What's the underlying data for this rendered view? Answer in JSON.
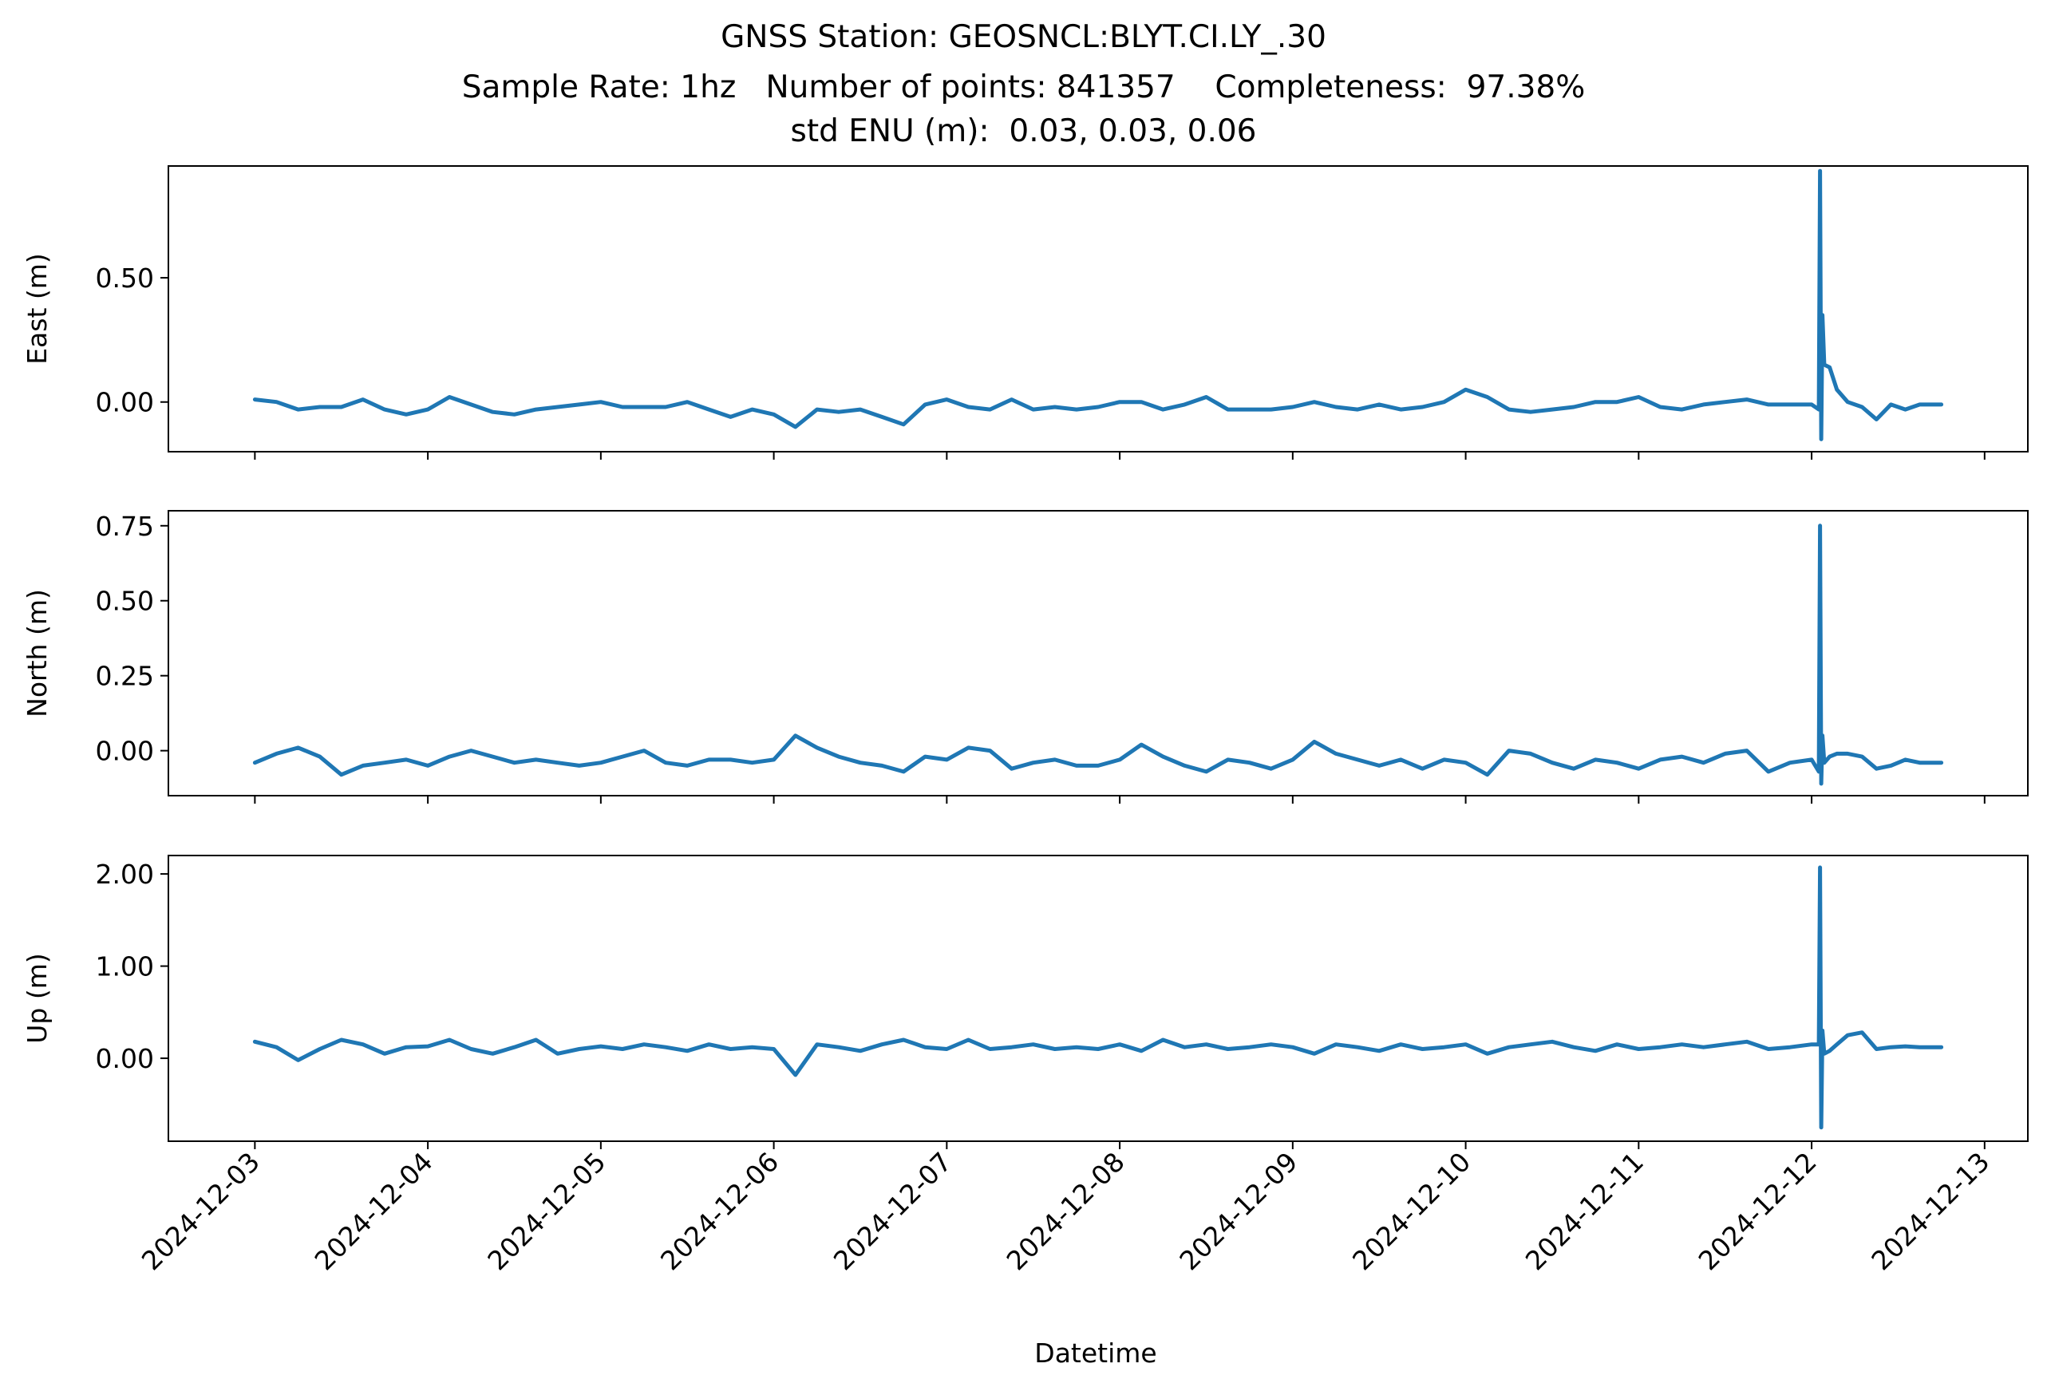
{
  "figure": {
    "title_line1": "GNSS Station: GEOSNCL:BLYT.CI.LY_.30",
    "title_line2": "Sample Rate: 1hz   Number of points: 841357    Completeness:  97.38%",
    "title_line3": "std ENU (m):  0.03, 0.03, 0.06",
    "xlabel": "Datetime"
  },
  "chart_data": [
    {
      "type": "line",
      "ylabel": "East (m)",
      "ylim": [
        -0.2,
        0.95
      ],
      "yticks": [
        0.0,
        0.5
      ],
      "ytick_labels": [
        "0.00",
        "0.50"
      ],
      "xlim": [
        "2024-12-02T12:00",
        "2024-12-13T06:00"
      ],
      "color": "#1f77b4",
      "x": [
        "2024-12-03T00:00",
        "2024-12-03T03:00",
        "2024-12-03T06:00",
        "2024-12-03T09:00",
        "2024-12-03T12:00",
        "2024-12-03T15:00",
        "2024-12-03T18:00",
        "2024-12-03T21:00",
        "2024-12-04T00:00",
        "2024-12-04T03:00",
        "2024-12-04T06:00",
        "2024-12-04T09:00",
        "2024-12-04T12:00",
        "2024-12-04T15:00",
        "2024-12-04T18:00",
        "2024-12-04T21:00",
        "2024-12-05T00:00",
        "2024-12-05T03:00",
        "2024-12-05T06:00",
        "2024-12-05T09:00",
        "2024-12-05T12:00",
        "2024-12-05T15:00",
        "2024-12-05T18:00",
        "2024-12-05T21:00",
        "2024-12-06T00:00",
        "2024-12-06T03:00",
        "2024-12-06T06:00",
        "2024-12-06T09:00",
        "2024-12-06T12:00",
        "2024-12-06T15:00",
        "2024-12-06T18:00",
        "2024-12-06T21:00",
        "2024-12-07T00:00",
        "2024-12-07T03:00",
        "2024-12-07T06:00",
        "2024-12-07T09:00",
        "2024-12-07T12:00",
        "2024-12-07T15:00",
        "2024-12-07T18:00",
        "2024-12-07T21:00",
        "2024-12-08T00:00",
        "2024-12-08T03:00",
        "2024-12-08T06:00",
        "2024-12-08T09:00",
        "2024-12-08T12:00",
        "2024-12-08T15:00",
        "2024-12-08T18:00",
        "2024-12-08T21:00",
        "2024-12-09T00:00",
        "2024-12-09T03:00",
        "2024-12-09T06:00",
        "2024-12-09T09:00",
        "2024-12-09T12:00",
        "2024-12-09T15:00",
        "2024-12-09T18:00",
        "2024-12-09T21:00",
        "2024-12-10T00:00",
        "2024-12-10T03:00",
        "2024-12-10T06:00",
        "2024-12-10T09:00",
        "2024-12-10T12:00",
        "2024-12-10T15:00",
        "2024-12-10T18:00",
        "2024-12-10T21:00",
        "2024-12-11T00:00",
        "2024-12-11T03:00",
        "2024-12-11T06:00",
        "2024-12-11T09:00",
        "2024-12-11T12:00",
        "2024-12-11T15:00",
        "2024-12-11T18:00",
        "2024-12-11T21:00",
        "2024-12-12T00:00",
        "2024-12-12T01:00",
        "2024-12-12T01:10",
        "2024-12-12T01:20",
        "2024-12-12T01:30",
        "2024-12-12T01:45",
        "2024-12-12T02:30",
        "2024-12-12T03:30",
        "2024-12-12T05:00",
        "2024-12-12T07:00",
        "2024-12-12T09:00",
        "2024-12-12T11:00",
        "2024-12-12T13:00",
        "2024-12-12T15:00",
        "2024-12-12T18:00"
      ],
      "y": [
        0.01,
        0.0,
        -0.03,
        -0.02,
        -0.02,
        0.01,
        -0.03,
        -0.05,
        -0.03,
        0.02,
        -0.01,
        -0.04,
        -0.05,
        -0.03,
        -0.02,
        -0.01,
        0.0,
        -0.02,
        -0.02,
        -0.02,
        0.0,
        -0.03,
        -0.06,
        -0.03,
        -0.05,
        -0.1,
        -0.03,
        -0.04,
        -0.03,
        -0.06,
        -0.09,
        -0.01,
        0.01,
        -0.02,
        -0.03,
        0.01,
        -0.03,
        -0.02,
        -0.03,
        -0.02,
        0.0,
        0.0,
        -0.03,
        -0.01,
        0.02,
        -0.03,
        -0.03,
        -0.03,
        -0.02,
        0.0,
        -0.02,
        -0.03,
        -0.01,
        -0.03,
        -0.02,
        0.0,
        0.05,
        0.02,
        -0.03,
        -0.04,
        -0.03,
        -0.02,
        0.0,
        0.0,
        0.02,
        -0.02,
        -0.03,
        -0.01,
        0.0,
        0.01,
        -0.01,
        -0.01,
        -0.01,
        -0.03,
        0.93,
        -0.15,
        0.35,
        0.15,
        0.14,
        0.05,
        0.0,
        -0.02,
        -0.07,
        -0.01,
        -0.03,
        -0.01,
        -0.01
      ]
    },
    {
      "type": "line",
      "ylabel": "North (m)",
      "ylim": [
        -0.15,
        0.8
      ],
      "yticks": [
        0.0,
        0.25,
        0.5,
        0.75
      ],
      "ytick_labels": [
        "0.00",
        "0.25",
        "0.50",
        "0.75"
      ],
      "xlim": [
        "2024-12-02T12:00",
        "2024-12-13T06:00"
      ],
      "color": "#1f77b4",
      "x": [
        "2024-12-03T00:00",
        "2024-12-03T03:00",
        "2024-12-03T06:00",
        "2024-12-03T09:00",
        "2024-12-03T12:00",
        "2024-12-03T15:00",
        "2024-12-03T18:00",
        "2024-12-03T21:00",
        "2024-12-04T00:00",
        "2024-12-04T03:00",
        "2024-12-04T06:00",
        "2024-12-04T09:00",
        "2024-12-04T12:00",
        "2024-12-04T15:00",
        "2024-12-04T18:00",
        "2024-12-04T21:00",
        "2024-12-05T00:00",
        "2024-12-05T03:00",
        "2024-12-05T06:00",
        "2024-12-05T09:00",
        "2024-12-05T12:00",
        "2024-12-05T15:00",
        "2024-12-05T18:00",
        "2024-12-05T21:00",
        "2024-12-06T00:00",
        "2024-12-06T03:00",
        "2024-12-06T06:00",
        "2024-12-06T09:00",
        "2024-12-06T12:00",
        "2024-12-06T15:00",
        "2024-12-06T18:00",
        "2024-12-06T21:00",
        "2024-12-07T00:00",
        "2024-12-07T03:00",
        "2024-12-07T06:00",
        "2024-12-07T09:00",
        "2024-12-07T12:00",
        "2024-12-07T15:00",
        "2024-12-07T18:00",
        "2024-12-07T21:00",
        "2024-12-08T00:00",
        "2024-12-08T03:00",
        "2024-12-08T06:00",
        "2024-12-08T09:00",
        "2024-12-08T12:00",
        "2024-12-08T15:00",
        "2024-12-08T18:00",
        "2024-12-08T21:00",
        "2024-12-09T00:00",
        "2024-12-09T03:00",
        "2024-12-09T06:00",
        "2024-12-09T09:00",
        "2024-12-09T12:00",
        "2024-12-09T15:00",
        "2024-12-09T18:00",
        "2024-12-09T21:00",
        "2024-12-10T00:00",
        "2024-12-10T03:00",
        "2024-12-10T06:00",
        "2024-12-10T09:00",
        "2024-12-10T12:00",
        "2024-12-10T15:00",
        "2024-12-10T18:00",
        "2024-12-10T21:00",
        "2024-12-11T00:00",
        "2024-12-11T03:00",
        "2024-12-11T06:00",
        "2024-12-11T09:00",
        "2024-12-11T12:00",
        "2024-12-11T15:00",
        "2024-12-11T18:00",
        "2024-12-11T21:00",
        "2024-12-12T00:00",
        "2024-12-12T01:00",
        "2024-12-12T01:10",
        "2024-12-12T01:20",
        "2024-12-12T01:30",
        "2024-12-12T01:45",
        "2024-12-12T02:30",
        "2024-12-12T03:30",
        "2024-12-12T05:00",
        "2024-12-12T07:00",
        "2024-12-12T09:00",
        "2024-12-12T11:00",
        "2024-12-12T13:00",
        "2024-12-12T15:00",
        "2024-12-12T18:00"
      ],
      "y": [
        -0.04,
        -0.01,
        0.01,
        -0.02,
        -0.08,
        -0.05,
        -0.04,
        -0.03,
        -0.05,
        -0.02,
        0.0,
        -0.02,
        -0.04,
        -0.03,
        -0.04,
        -0.05,
        -0.04,
        -0.02,
        0.0,
        -0.04,
        -0.05,
        -0.03,
        -0.03,
        -0.04,
        -0.03,
        0.05,
        0.01,
        -0.02,
        -0.04,
        -0.05,
        -0.07,
        -0.02,
        -0.03,
        0.01,
        0.0,
        -0.06,
        -0.04,
        -0.03,
        -0.05,
        -0.05,
        -0.03,
        0.02,
        -0.02,
        -0.05,
        -0.07,
        -0.03,
        -0.04,
        -0.06,
        -0.03,
        0.03,
        -0.01,
        -0.03,
        -0.05,
        -0.03,
        -0.06,
        -0.03,
        -0.04,
        -0.08,
        0.0,
        -0.01,
        -0.04,
        -0.06,
        -0.03,
        -0.04,
        -0.06,
        -0.03,
        -0.02,
        -0.04,
        -0.01,
        0.0,
        -0.07,
        -0.04,
        -0.03,
        -0.07,
        0.75,
        -0.11,
        0.05,
        -0.04,
        -0.02,
        -0.01,
        -0.01,
        -0.02,
        -0.06,
        -0.05,
        -0.03,
        -0.04,
        -0.04
      ]
    },
    {
      "type": "line",
      "ylabel": "Up (m)",
      "ylim": [
        -0.9,
        2.2
      ],
      "yticks": [
        0.0,
        1.0,
        2.0
      ],
      "ytick_labels": [
        "0.00",
        "1.00",
        "2.00"
      ],
      "xlim": [
        "2024-12-02T12:00",
        "2024-12-13T06:00"
      ],
      "color": "#1f77b4",
      "x": [
        "2024-12-03T00:00",
        "2024-12-03T03:00",
        "2024-12-03T06:00",
        "2024-12-03T09:00",
        "2024-12-03T12:00",
        "2024-12-03T15:00",
        "2024-12-03T18:00",
        "2024-12-03T21:00",
        "2024-12-04T00:00",
        "2024-12-04T03:00",
        "2024-12-04T06:00",
        "2024-12-04T09:00",
        "2024-12-04T12:00",
        "2024-12-04T15:00",
        "2024-12-04T18:00",
        "2024-12-04T21:00",
        "2024-12-05T00:00",
        "2024-12-05T03:00",
        "2024-12-05T06:00",
        "2024-12-05T09:00",
        "2024-12-05T12:00",
        "2024-12-05T15:00",
        "2024-12-05T18:00",
        "2024-12-05T21:00",
        "2024-12-06T00:00",
        "2024-12-06T03:00",
        "2024-12-06T06:00",
        "2024-12-06T09:00",
        "2024-12-06T12:00",
        "2024-12-06T15:00",
        "2024-12-06T18:00",
        "2024-12-06T21:00",
        "2024-12-07T00:00",
        "2024-12-07T03:00",
        "2024-12-07T06:00",
        "2024-12-07T09:00",
        "2024-12-07T12:00",
        "2024-12-07T15:00",
        "2024-12-07T18:00",
        "2024-12-07T21:00",
        "2024-12-08T00:00",
        "2024-12-08T03:00",
        "2024-12-08T06:00",
        "2024-12-08T09:00",
        "2024-12-08T12:00",
        "2024-12-08T15:00",
        "2024-12-08T18:00",
        "2024-12-08T21:00",
        "2024-12-09T00:00",
        "2024-12-09T03:00",
        "2024-12-09T06:00",
        "2024-12-09T09:00",
        "2024-12-09T12:00",
        "2024-12-09T15:00",
        "2024-12-09T18:00",
        "2024-12-09T21:00",
        "2024-12-10T00:00",
        "2024-12-10T03:00",
        "2024-12-10T06:00",
        "2024-12-10T09:00",
        "2024-12-10T12:00",
        "2024-12-10T15:00",
        "2024-12-10T18:00",
        "2024-12-10T21:00",
        "2024-12-11T00:00",
        "2024-12-11T03:00",
        "2024-12-11T06:00",
        "2024-12-11T09:00",
        "2024-12-11T12:00",
        "2024-12-11T15:00",
        "2024-12-11T18:00",
        "2024-12-11T21:00",
        "2024-12-12T00:00",
        "2024-12-12T01:00",
        "2024-12-12T01:10",
        "2024-12-12T01:20",
        "2024-12-12T01:30",
        "2024-12-12T01:45",
        "2024-12-12T02:30",
        "2024-12-12T03:30",
        "2024-12-12T05:00",
        "2024-12-12T07:00",
        "2024-12-12T09:00",
        "2024-12-12T11:00",
        "2024-12-12T13:00",
        "2024-12-12T15:00",
        "2024-12-12T18:00"
      ],
      "y": [
        0.18,
        0.12,
        -0.02,
        0.1,
        0.2,
        0.15,
        0.05,
        0.12,
        0.13,
        0.2,
        0.1,
        0.05,
        0.12,
        0.2,
        0.05,
        0.1,
        0.13,
        0.1,
        0.15,
        0.12,
        0.08,
        0.15,
        0.1,
        0.12,
        0.1,
        -0.18,
        0.15,
        0.12,
        0.08,
        0.15,
        0.2,
        0.12,
        0.1,
        0.2,
        0.1,
        0.12,
        0.15,
        0.1,
        0.12,
        0.1,
        0.15,
        0.08,
        0.2,
        0.12,
        0.15,
        0.1,
        0.12,
        0.15,
        0.12,
        0.05,
        0.15,
        0.12,
        0.08,
        0.15,
        0.1,
        0.12,
        0.15,
        0.05,
        0.12,
        0.15,
        0.18,
        0.12,
        0.08,
        0.15,
        0.1,
        0.12,
        0.15,
        0.12,
        0.15,
        0.18,
        0.1,
        0.12,
        0.15,
        0.15,
        2.07,
        -0.75,
        0.3,
        0.05,
        0.08,
        0.15,
        0.25,
        0.28,
        0.1,
        0.12,
        0.13,
        0.12,
        0.12
      ]
    }
  ]
}
